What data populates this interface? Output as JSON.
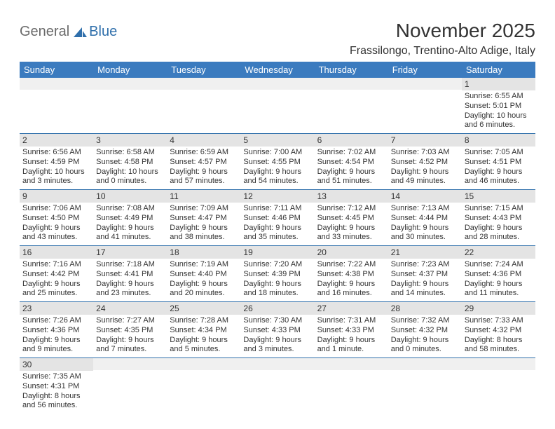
{
  "logo": {
    "text1": "General",
    "text2": "Blue"
  },
  "title": "November 2025",
  "location": "Frassilongo, Trentino-Alto Adige, Italy",
  "colors": {
    "header_bg": "#3b7bbf",
    "header_text": "#ffffff",
    "daynum_bg": "#e4e4e4",
    "cell_border": "#2f6fab",
    "text": "#333333",
    "logo_gray": "#6a6a6a",
    "logo_blue": "#2f6fab",
    "background": "#ffffff"
  },
  "fonts": {
    "title_size_pt": 21,
    "location_size_pt": 12,
    "header_size_pt": 10,
    "daynum_size_pt": 9,
    "body_size_pt": 8
  },
  "weekday_labels": [
    "Sunday",
    "Monday",
    "Tuesday",
    "Wednesday",
    "Thursday",
    "Friday",
    "Saturday"
  ],
  "weeks": [
    [
      {
        "day": null
      },
      {
        "day": null
      },
      {
        "day": null
      },
      {
        "day": null
      },
      {
        "day": null
      },
      {
        "day": null
      },
      {
        "day": 1,
        "sunrise": "Sunrise: 6:55 AM",
        "sunset": "Sunset: 5:01 PM",
        "daylight1": "Daylight: 10 hours",
        "daylight2": "and 6 minutes."
      }
    ],
    [
      {
        "day": 2,
        "sunrise": "Sunrise: 6:56 AM",
        "sunset": "Sunset: 4:59 PM",
        "daylight1": "Daylight: 10 hours",
        "daylight2": "and 3 minutes."
      },
      {
        "day": 3,
        "sunrise": "Sunrise: 6:58 AM",
        "sunset": "Sunset: 4:58 PM",
        "daylight1": "Daylight: 10 hours",
        "daylight2": "and 0 minutes."
      },
      {
        "day": 4,
        "sunrise": "Sunrise: 6:59 AM",
        "sunset": "Sunset: 4:57 PM",
        "daylight1": "Daylight: 9 hours",
        "daylight2": "and 57 minutes."
      },
      {
        "day": 5,
        "sunrise": "Sunrise: 7:00 AM",
        "sunset": "Sunset: 4:55 PM",
        "daylight1": "Daylight: 9 hours",
        "daylight2": "and 54 minutes."
      },
      {
        "day": 6,
        "sunrise": "Sunrise: 7:02 AM",
        "sunset": "Sunset: 4:54 PM",
        "daylight1": "Daylight: 9 hours",
        "daylight2": "and 51 minutes."
      },
      {
        "day": 7,
        "sunrise": "Sunrise: 7:03 AM",
        "sunset": "Sunset: 4:52 PM",
        "daylight1": "Daylight: 9 hours",
        "daylight2": "and 49 minutes."
      },
      {
        "day": 8,
        "sunrise": "Sunrise: 7:05 AM",
        "sunset": "Sunset: 4:51 PM",
        "daylight1": "Daylight: 9 hours",
        "daylight2": "and 46 minutes."
      }
    ],
    [
      {
        "day": 9,
        "sunrise": "Sunrise: 7:06 AM",
        "sunset": "Sunset: 4:50 PM",
        "daylight1": "Daylight: 9 hours",
        "daylight2": "and 43 minutes."
      },
      {
        "day": 10,
        "sunrise": "Sunrise: 7:08 AM",
        "sunset": "Sunset: 4:49 PM",
        "daylight1": "Daylight: 9 hours",
        "daylight2": "and 41 minutes."
      },
      {
        "day": 11,
        "sunrise": "Sunrise: 7:09 AM",
        "sunset": "Sunset: 4:47 PM",
        "daylight1": "Daylight: 9 hours",
        "daylight2": "and 38 minutes."
      },
      {
        "day": 12,
        "sunrise": "Sunrise: 7:11 AM",
        "sunset": "Sunset: 4:46 PM",
        "daylight1": "Daylight: 9 hours",
        "daylight2": "and 35 minutes."
      },
      {
        "day": 13,
        "sunrise": "Sunrise: 7:12 AM",
        "sunset": "Sunset: 4:45 PM",
        "daylight1": "Daylight: 9 hours",
        "daylight2": "and 33 minutes."
      },
      {
        "day": 14,
        "sunrise": "Sunrise: 7:13 AM",
        "sunset": "Sunset: 4:44 PM",
        "daylight1": "Daylight: 9 hours",
        "daylight2": "and 30 minutes."
      },
      {
        "day": 15,
        "sunrise": "Sunrise: 7:15 AM",
        "sunset": "Sunset: 4:43 PM",
        "daylight1": "Daylight: 9 hours",
        "daylight2": "and 28 minutes."
      }
    ],
    [
      {
        "day": 16,
        "sunrise": "Sunrise: 7:16 AM",
        "sunset": "Sunset: 4:42 PM",
        "daylight1": "Daylight: 9 hours",
        "daylight2": "and 25 minutes."
      },
      {
        "day": 17,
        "sunrise": "Sunrise: 7:18 AM",
        "sunset": "Sunset: 4:41 PM",
        "daylight1": "Daylight: 9 hours",
        "daylight2": "and 23 minutes."
      },
      {
        "day": 18,
        "sunrise": "Sunrise: 7:19 AM",
        "sunset": "Sunset: 4:40 PM",
        "daylight1": "Daylight: 9 hours",
        "daylight2": "and 20 minutes."
      },
      {
        "day": 19,
        "sunrise": "Sunrise: 7:20 AM",
        "sunset": "Sunset: 4:39 PM",
        "daylight1": "Daylight: 9 hours",
        "daylight2": "and 18 minutes."
      },
      {
        "day": 20,
        "sunrise": "Sunrise: 7:22 AM",
        "sunset": "Sunset: 4:38 PM",
        "daylight1": "Daylight: 9 hours",
        "daylight2": "and 16 minutes."
      },
      {
        "day": 21,
        "sunrise": "Sunrise: 7:23 AM",
        "sunset": "Sunset: 4:37 PM",
        "daylight1": "Daylight: 9 hours",
        "daylight2": "and 14 minutes."
      },
      {
        "day": 22,
        "sunrise": "Sunrise: 7:24 AM",
        "sunset": "Sunset: 4:36 PM",
        "daylight1": "Daylight: 9 hours",
        "daylight2": "and 11 minutes."
      }
    ],
    [
      {
        "day": 23,
        "sunrise": "Sunrise: 7:26 AM",
        "sunset": "Sunset: 4:36 PM",
        "daylight1": "Daylight: 9 hours",
        "daylight2": "and 9 minutes."
      },
      {
        "day": 24,
        "sunrise": "Sunrise: 7:27 AM",
        "sunset": "Sunset: 4:35 PM",
        "daylight1": "Daylight: 9 hours",
        "daylight2": "and 7 minutes."
      },
      {
        "day": 25,
        "sunrise": "Sunrise: 7:28 AM",
        "sunset": "Sunset: 4:34 PM",
        "daylight1": "Daylight: 9 hours",
        "daylight2": "and 5 minutes."
      },
      {
        "day": 26,
        "sunrise": "Sunrise: 7:30 AM",
        "sunset": "Sunset: 4:33 PM",
        "daylight1": "Daylight: 9 hours",
        "daylight2": "and 3 minutes."
      },
      {
        "day": 27,
        "sunrise": "Sunrise: 7:31 AM",
        "sunset": "Sunset: 4:33 PM",
        "daylight1": "Daylight: 9 hours",
        "daylight2": "and 1 minute."
      },
      {
        "day": 28,
        "sunrise": "Sunrise: 7:32 AM",
        "sunset": "Sunset: 4:32 PM",
        "daylight1": "Daylight: 9 hours",
        "daylight2": "and 0 minutes."
      },
      {
        "day": 29,
        "sunrise": "Sunrise: 7:33 AM",
        "sunset": "Sunset: 4:32 PM",
        "daylight1": "Daylight: 8 hours",
        "daylight2": "and 58 minutes."
      }
    ],
    [
      {
        "day": 30,
        "sunrise": "Sunrise: 7:35 AM",
        "sunset": "Sunset: 4:31 PM",
        "daylight1": "Daylight: 8 hours",
        "daylight2": "and 56 minutes."
      },
      {
        "day": null
      },
      {
        "day": null
      },
      {
        "day": null
      },
      {
        "day": null
      },
      {
        "day": null
      },
      {
        "day": null
      }
    ]
  ]
}
